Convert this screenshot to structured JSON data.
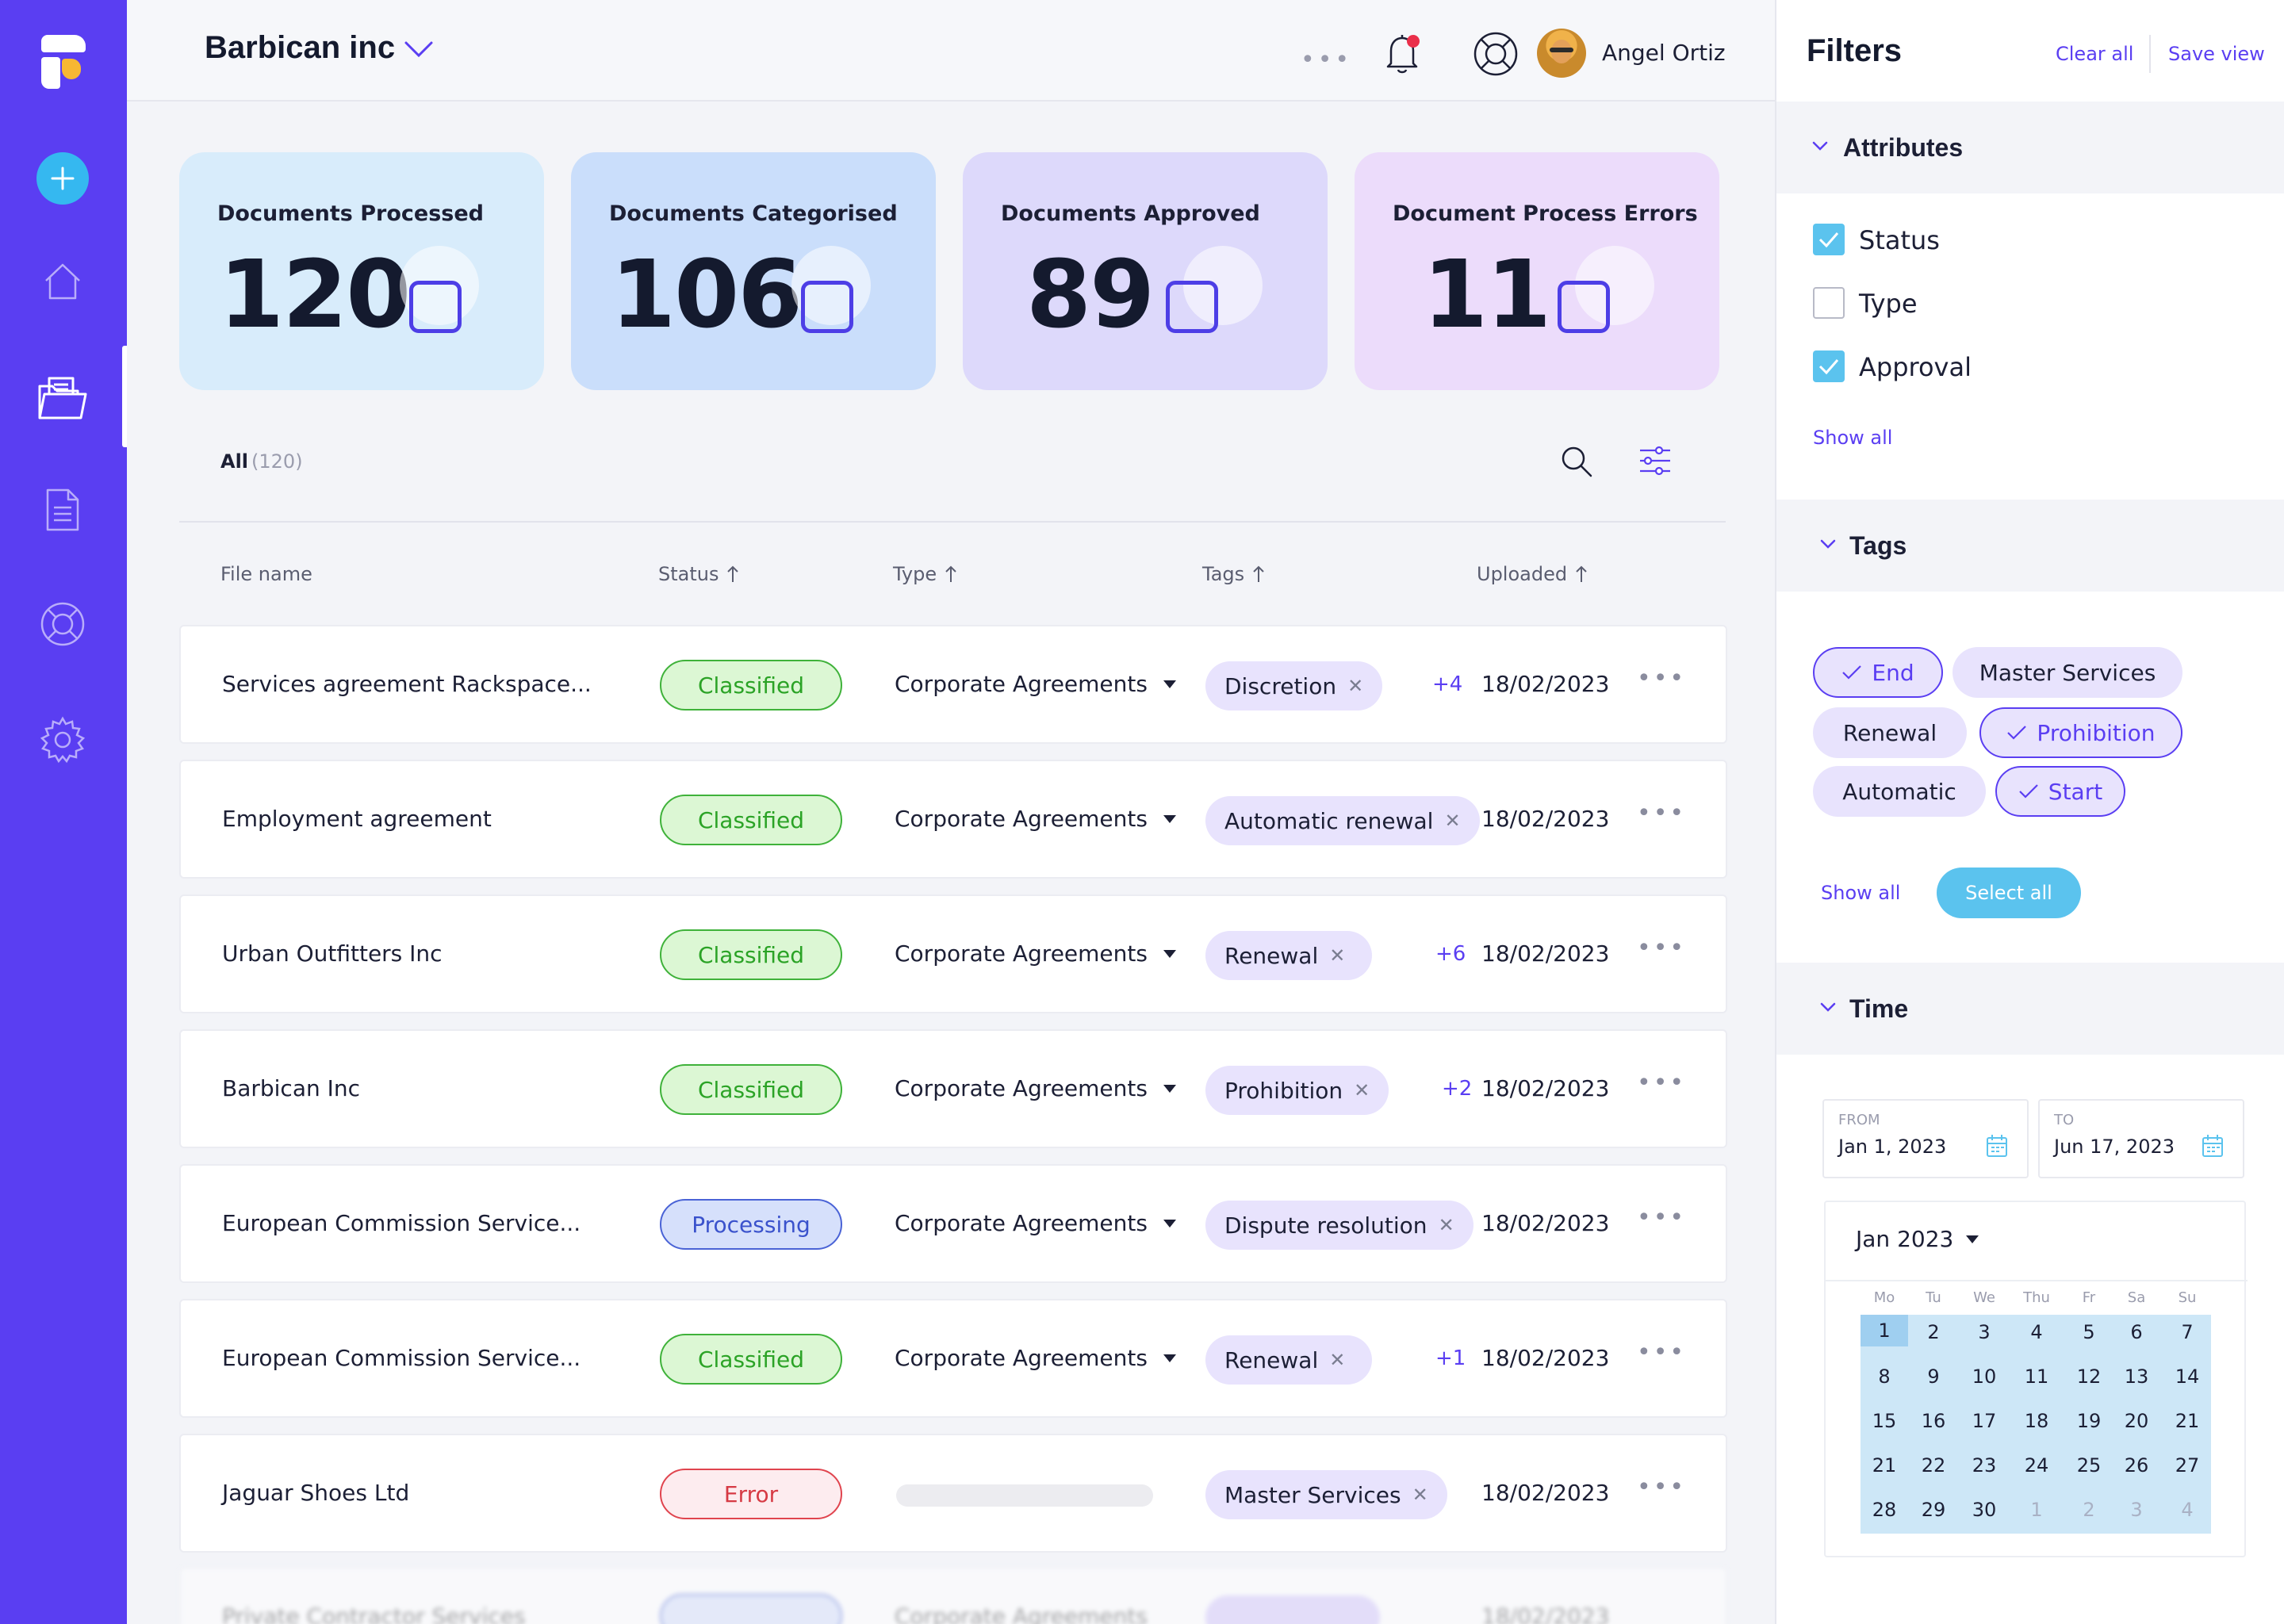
{
  "app": {
    "company": "Barbican inc",
    "user": "Angel Ortiz"
  },
  "kpis": [
    {
      "label": "Documents Processed",
      "value": "120",
      "color": "#d8ecfb"
    },
    {
      "label": "Documents Categorised",
      "value": "106",
      "color": "#cadefb"
    },
    {
      "label": "Documents Approved",
      "value": "89",
      "color": "#ddd9fb"
    },
    {
      "label": "Document Process Errors",
      "value": "11",
      "color": "#ecdcfb"
    }
  ],
  "list": {
    "tab_all": "All",
    "tab_count": "(120)",
    "columns": {
      "file_name": "File name",
      "status": "Status",
      "type": "Type",
      "tags": "Tags",
      "uploaded": "Uploaded"
    },
    "rows": [
      {
        "file": "Services agreement Rackspace...",
        "status": "Classified",
        "type": "Corporate Agreements",
        "tag": "Discretion",
        "more_tags": "+4",
        "date": "18/02/2023"
      },
      {
        "file": "Employment agreement",
        "status": "Classified",
        "type": "Corporate Agreements",
        "tag": "Automatic renewal",
        "more_tags": "",
        "date": "18/02/2023"
      },
      {
        "file": "Urban Outfitters Inc",
        "status": "Classified",
        "type": "Corporate Agreements",
        "tag": "Renewal",
        "more_tags": "+6",
        "date": "18/02/2023"
      },
      {
        "file": "Barbican Inc",
        "status": "Classified",
        "type": "Corporate Agreements",
        "tag": "Prohibition",
        "more_tags": "+2",
        "date": "18/02/2023"
      },
      {
        "file": "European Commission Service...",
        "status": "Processing",
        "type": "Corporate Agreements",
        "tag": "Dispute resolution",
        "more_tags": "",
        "date": "18/02/2023"
      },
      {
        "file": "European Commission Service...",
        "status": "Classified",
        "type": "Corporate Agreements",
        "tag": "Renewal",
        "more_tags": "+1",
        "date": "18/02/2023"
      },
      {
        "file": "Jaguar Shoes Ltd",
        "status": "Error",
        "type": "",
        "tag": "Master Services",
        "more_tags": "",
        "date": "18/02/2023"
      }
    ],
    "partial_row": {
      "file": "Private Contractor Services",
      "type": "Corporate Agreements",
      "date": "18/02/2023"
    }
  },
  "filters": {
    "title": "Filters",
    "clear_all": "Clear all",
    "save_view": "Save view",
    "attributes": {
      "label": "Attributes",
      "items": [
        {
          "label": "Status",
          "checked": true
        },
        {
          "label": "Type",
          "checked": false
        },
        {
          "label": "Approval",
          "checked": true
        }
      ],
      "show_all": "Show all"
    },
    "tags": {
      "label": "Tags",
      "items": [
        {
          "label": "End",
          "selected": true
        },
        {
          "label": "Master Services",
          "selected": false
        },
        {
          "label": "Renewal",
          "selected": false
        },
        {
          "label": "Prohibition",
          "selected": true
        },
        {
          "label": "Automatic",
          "selected": false
        },
        {
          "label": "Start",
          "selected": true
        }
      ],
      "show_all": "Show all",
      "select_all": "Select all"
    },
    "time": {
      "label": "Time",
      "from_label": "FROM",
      "from_value": "Jan 1, 2023",
      "to_label": "TO",
      "to_value": "Jun 17, 2023",
      "month": "Jan 2023",
      "weekdays": [
        "Mo",
        "Tu",
        "We",
        "Thu",
        "Fr",
        "Sa",
        "Su"
      ],
      "weeks": [
        [
          "1",
          "2",
          "3",
          "4",
          "5",
          "6",
          "7"
        ],
        [
          "8",
          "9",
          "10",
          "11",
          "12",
          "13",
          "14"
        ],
        [
          "15",
          "16",
          "17",
          "18",
          "19",
          "20",
          "21"
        ],
        [
          "21",
          "22",
          "23",
          "24",
          "25",
          "26",
          "27"
        ],
        [
          "28",
          "29",
          "30",
          "1",
          "2",
          "3",
          "4"
        ]
      ]
    }
  },
  "colors": {
    "sidebar": "#5a3ef2",
    "accent": "#5a3ef2",
    "cyan": "#5bc3ee"
  },
  "icons": [
    "logo-icon",
    "plus-icon",
    "home-icon",
    "folder-icon",
    "document-icon",
    "lifebuoy-icon",
    "gear-icon",
    "chevron-down-icon",
    "bell-icon",
    "search-icon",
    "sliders-icon",
    "calendar-icon"
  ]
}
